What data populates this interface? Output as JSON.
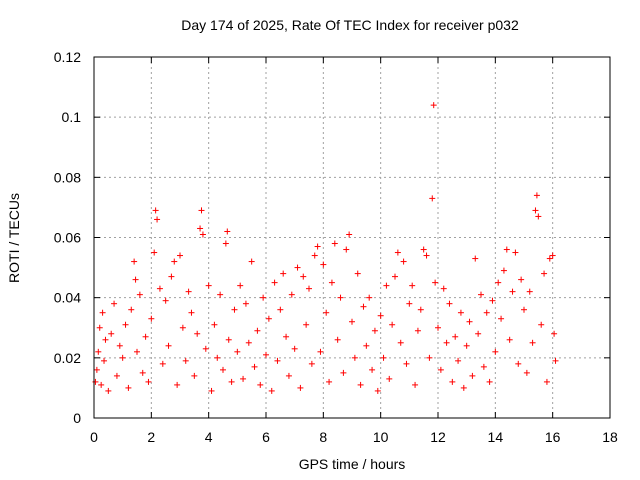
{
  "chart_data": {
    "type": "scatter",
    "title": "Day 174 of 2025, Rate Of TEC Index for receiver p032",
    "xlabel": "GPS time / hours",
    "ylabel": "ROTI / TECUs",
    "xlim": [
      0,
      18
    ],
    "ylim": [
      0,
      0.12
    ],
    "xticks": [
      "0",
      "2",
      "4",
      "6",
      "8",
      "10",
      "12",
      "14",
      "16",
      "18"
    ],
    "yticks": [
      "0",
      "0.02",
      "0.04",
      "0.06",
      "0.08",
      "0.1",
      "0.12"
    ],
    "grid": true,
    "marker": "+",
    "marker_color": "#ff0000",
    "series": [
      {
        "points": [
          [
            0.05,
            0.012
          ],
          [
            0.1,
            0.016
          ],
          [
            0.15,
            0.022
          ],
          [
            0.2,
            0.03
          ],
          [
            0.25,
            0.011
          ],
          [
            0.3,
            0.035
          ],
          [
            0.35,
            0.019
          ],
          [
            0.4,
            0.026
          ],
          [
            0.5,
            0.009
          ],
          [
            0.6,
            0.028
          ],
          [
            0.7,
            0.038
          ],
          [
            0.8,
            0.014
          ],
          [
            0.9,
            0.024
          ],
          [
            1.0,
            0.02
          ],
          [
            1.1,
            0.031
          ],
          [
            1.2,
            0.01
          ],
          [
            1.3,
            0.036
          ],
          [
            1.4,
            0.052
          ],
          [
            1.45,
            0.046
          ],
          [
            1.5,
            0.022
          ],
          [
            1.6,
            0.041
          ],
          [
            1.7,
            0.015
          ],
          [
            1.8,
            0.027
          ],
          [
            1.9,
            0.012
          ],
          [
            2.0,
            0.033
          ],
          [
            2.1,
            0.055
          ],
          [
            2.15,
            0.069
          ],
          [
            2.2,
            0.066
          ],
          [
            2.3,
            0.043
          ],
          [
            2.4,
            0.018
          ],
          [
            2.5,
            0.039
          ],
          [
            2.6,
            0.024
          ],
          [
            2.7,
            0.047
          ],
          [
            2.8,
            0.052
          ],
          [
            2.9,
            0.011
          ],
          [
            3.0,
            0.054
          ],
          [
            3.1,
            0.03
          ],
          [
            3.2,
            0.019
          ],
          [
            3.3,
            0.042
          ],
          [
            3.4,
            0.035
          ],
          [
            3.5,
            0.014
          ],
          [
            3.6,
            0.028
          ],
          [
            3.7,
            0.063
          ],
          [
            3.75,
            0.069
          ],
          [
            3.8,
            0.061
          ],
          [
            3.9,
            0.023
          ],
          [
            4.0,
            0.044
          ],
          [
            4.1,
            0.009
          ],
          [
            4.2,
            0.031
          ],
          [
            4.3,
            0.02
          ],
          [
            4.4,
            0.041
          ],
          [
            4.5,
            0.016
          ],
          [
            4.6,
            0.058
          ],
          [
            4.65,
            0.062
          ],
          [
            4.7,
            0.026
          ],
          [
            4.8,
            0.012
          ],
          [
            4.9,
            0.036
          ],
          [
            5.0,
            0.022
          ],
          [
            5.1,
            0.044
          ],
          [
            5.2,
            0.013
          ],
          [
            5.3,
            0.038
          ],
          [
            5.4,
            0.025
          ],
          [
            5.5,
            0.052
          ],
          [
            5.6,
            0.017
          ],
          [
            5.7,
            0.029
          ],
          [
            5.8,
            0.011
          ],
          [
            5.9,
            0.04
          ],
          [
            6.0,
            0.021
          ],
          [
            6.1,
            0.033
          ],
          [
            6.2,
            0.009
          ],
          [
            6.3,
            0.045
          ],
          [
            6.4,
            0.019
          ],
          [
            6.5,
            0.036
          ],
          [
            6.6,
            0.048
          ],
          [
            6.7,
            0.027
          ],
          [
            6.8,
            0.014
          ],
          [
            6.9,
            0.041
          ],
          [
            7.0,
            0.023
          ],
          [
            7.1,
            0.05
          ],
          [
            7.2,
            0.01
          ],
          [
            7.3,
            0.047
          ],
          [
            7.4,
            0.031
          ],
          [
            7.5,
            0.043
          ],
          [
            7.6,
            0.018
          ],
          [
            7.7,
            0.054
          ],
          [
            7.8,
            0.057
          ],
          [
            7.9,
            0.022
          ],
          [
            8.0,
            0.051
          ],
          [
            8.1,
            0.035
          ],
          [
            8.2,
            0.012
          ],
          [
            8.3,
            0.045
          ],
          [
            8.4,
            0.058
          ],
          [
            8.5,
            0.026
          ],
          [
            8.6,
            0.04
          ],
          [
            8.7,
            0.015
          ],
          [
            8.8,
            0.056
          ],
          [
            8.9,
            0.061
          ],
          [
            9.0,
            0.032
          ],
          [
            9.1,
            0.02
          ],
          [
            9.2,
            0.048
          ],
          [
            9.3,
            0.011
          ],
          [
            9.4,
            0.037
          ],
          [
            9.5,
            0.024
          ],
          [
            9.6,
            0.04
          ],
          [
            9.7,
            0.016
          ],
          [
            9.8,
            0.029
          ],
          [
            9.9,
            0.009
          ],
          [
            10.0,
            0.034
          ],
          [
            10.1,
            0.02
          ],
          [
            10.2,
            0.044
          ],
          [
            10.3,
            0.013
          ],
          [
            10.4,
            0.031
          ],
          [
            10.5,
            0.047
          ],
          [
            10.6,
            0.055
          ],
          [
            10.7,
            0.025
          ],
          [
            10.8,
            0.052
          ],
          [
            10.9,
            0.018
          ],
          [
            11.0,
            0.038
          ],
          [
            11.1,
            0.044
          ],
          [
            11.2,
            0.011
          ],
          [
            11.3,
            0.029
          ],
          [
            11.4,
            0.036
          ],
          [
            11.5,
            0.056
          ],
          [
            11.6,
            0.054
          ],
          [
            11.7,
            0.02
          ],
          [
            11.8,
            0.073
          ],
          [
            11.85,
            0.104
          ],
          [
            11.9,
            0.045
          ],
          [
            12.0,
            0.03
          ],
          [
            12.1,
            0.016
          ],
          [
            12.2,
            0.043
          ],
          [
            12.3,
            0.025
          ],
          [
            12.4,
            0.038
          ],
          [
            12.5,
            0.012
          ],
          [
            12.6,
            0.027
          ],
          [
            12.7,
            0.019
          ],
          [
            12.8,
            0.035
          ],
          [
            12.9,
            0.01
          ],
          [
            13.0,
            0.024
          ],
          [
            13.1,
            0.032
          ],
          [
            13.2,
            0.014
          ],
          [
            13.3,
            0.053
          ],
          [
            13.4,
            0.028
          ],
          [
            13.5,
            0.041
          ],
          [
            13.6,
            0.017
          ],
          [
            13.7,
            0.035
          ],
          [
            13.8,
            0.012
          ],
          [
            13.9,
            0.039
          ],
          [
            14.0,
            0.022
          ],
          [
            14.1,
            0.045
          ],
          [
            14.2,
            0.033
          ],
          [
            14.3,
            0.049
          ],
          [
            14.4,
            0.056
          ],
          [
            14.5,
            0.026
          ],
          [
            14.6,
            0.042
          ],
          [
            14.7,
            0.055
          ],
          [
            14.8,
            0.018
          ],
          [
            14.9,
            0.046
          ],
          [
            15.0,
            0.036
          ],
          [
            15.1,
            0.015
          ],
          [
            15.2,
            0.042
          ],
          [
            15.3,
            0.025
          ],
          [
            15.4,
            0.069
          ],
          [
            15.45,
            0.074
          ],
          [
            15.5,
            0.067
          ],
          [
            15.6,
            0.031
          ],
          [
            15.7,
            0.048
          ],
          [
            15.8,
            0.012
          ],
          [
            15.9,
            0.053
          ],
          [
            16.0,
            0.054
          ],
          [
            16.05,
            0.028
          ],
          [
            16.1,
            0.019
          ]
        ]
      }
    ]
  }
}
